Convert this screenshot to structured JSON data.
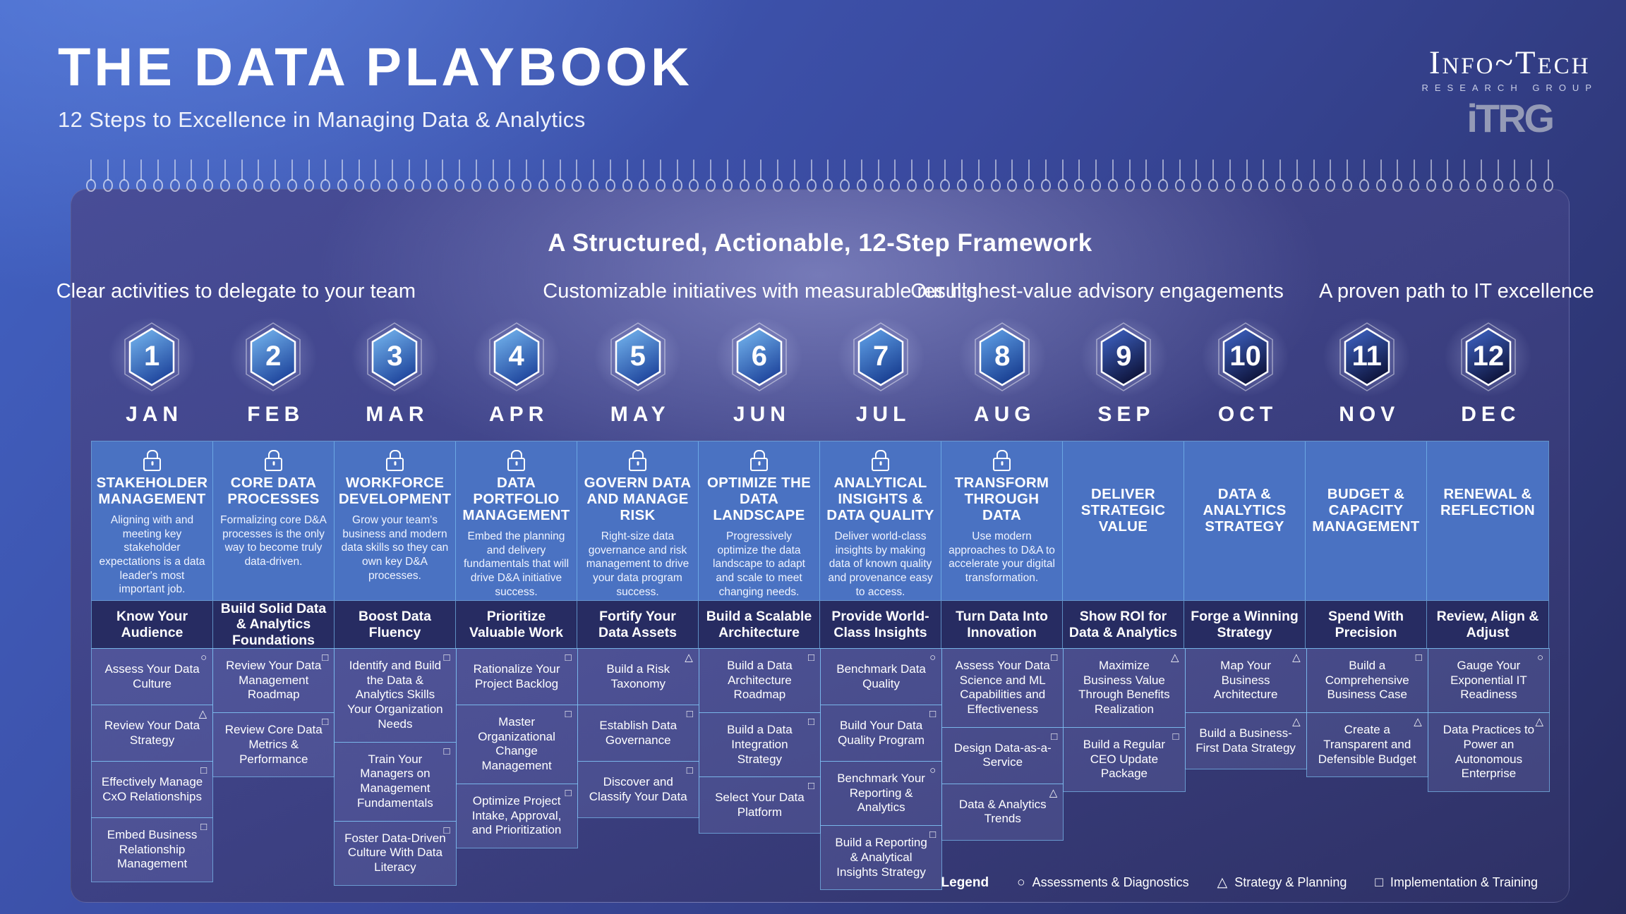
{
  "header": {
    "title": "THE DATA PLAYBOOK",
    "subtitle": "12 Steps to Excellence in Managing Data & Analytics"
  },
  "logo": {
    "brand": "Info~Tech",
    "tagline": "RESEARCH GROUP",
    "mark": "iTRG"
  },
  "framework": {
    "heading": "A Structured, Actionable, 12-Step Framework",
    "group_headers": [
      "Clear activities to delegate to your team",
      "Customizable initiatives with measurable results",
      "Our highest-value advisory engagements",
      "A proven path to IT excellence"
    ]
  },
  "columns": [
    {
      "step": 1,
      "month": "JAN",
      "locked": true,
      "title": "STAKEHOLDER MANAGEMENT",
      "description": "Aligning with and meeting key stakeholder expectations is a data leader's most important job.",
      "subtitle": "Know Your Audience",
      "tasks": [
        {
          "label": "Assess Your Data Culture",
          "icon": "circle"
        },
        {
          "label": "Review Your Data Strategy",
          "icon": "triangle"
        },
        {
          "label": "Effectively Manage CxO Relationships",
          "icon": "square"
        },
        {
          "label": "Embed Business Relationship Management",
          "icon": "square"
        }
      ]
    },
    {
      "step": 2,
      "month": "FEB",
      "locked": true,
      "title": "CORE DATA PROCESSES",
      "description": "Formalizing core D&A processes is the only way to become truly data-driven.",
      "subtitle": "Build Solid Data & Analytics Foundations",
      "tasks": [
        {
          "label": "Review Your Data Management Roadmap",
          "icon": "square"
        },
        {
          "label": "Review Core Data Metrics & Performance",
          "icon": "square"
        }
      ]
    },
    {
      "step": 3,
      "month": "MAR",
      "locked": true,
      "title": "WORKFORCE DEVELOPMENT",
      "description": "Grow your team's business and modern data skills so they can own key D&A processes.",
      "subtitle": "Boost Data Fluency",
      "tasks": [
        {
          "label": "Identify and Build the Data & Analytics Skills Your Organization Needs",
          "icon": "square"
        },
        {
          "label": "Train Your Managers on Management Fundamentals",
          "icon": "square"
        },
        {
          "label": "Foster Data-Driven Culture With Data Literacy",
          "icon": "square"
        }
      ]
    },
    {
      "step": 4,
      "month": "APR",
      "locked": true,
      "title": "DATA PORTFOLIO MANAGEMENT",
      "description": "Embed the planning and delivery fundamentals that will drive D&A initiative success.",
      "subtitle": "Prioritize Valuable Work",
      "tasks": [
        {
          "label": "Rationalize Your Project Backlog",
          "icon": "square"
        },
        {
          "label": "Master Organizational Change Management",
          "icon": "square"
        },
        {
          "label": "Optimize Project Intake, Approval, and Prioritization",
          "icon": "square"
        }
      ]
    },
    {
      "step": 5,
      "month": "MAY",
      "locked": true,
      "title": "GOVERN DATA AND MANAGE RISK",
      "description": "Right-size data governance and risk management to drive your data program success.",
      "subtitle": "Fortify Your Data Assets",
      "tasks": [
        {
          "label": "Build a Risk Taxonomy",
          "icon": "triangle"
        },
        {
          "label": "Establish Data Governance",
          "icon": "square"
        },
        {
          "label": "Discover and Classify Your Data",
          "icon": "square"
        }
      ]
    },
    {
      "step": 6,
      "month": "JUN",
      "locked": true,
      "title": "OPTIMIZE THE DATA LANDSCAPE",
      "description": "Progressively optimize the data landscape to adapt and scale to meet changing needs.",
      "subtitle": "Build a Scalable Architecture",
      "tasks": [
        {
          "label": "Build a Data Architecture Roadmap",
          "icon": "square"
        },
        {
          "label": "Build a Data Integration Strategy",
          "icon": "square"
        },
        {
          "label": "Select Your Data Platform",
          "icon": "square"
        }
      ]
    },
    {
      "step": 7,
      "month": "JUL",
      "locked": true,
      "title": "ANALYTICAL INSIGHTS & DATA QUALITY",
      "description": "Deliver world-class insights by making data of known quality and provenance easy to access.",
      "subtitle": "Provide World-Class Insights",
      "tasks": [
        {
          "label": "Benchmark Data Quality",
          "icon": "circle"
        },
        {
          "label": "Build Your Data Quality Program",
          "icon": "square"
        },
        {
          "label": "Benchmark Your Reporting & Analytics",
          "icon": "circle"
        },
        {
          "label": "Build a Reporting & Analytical Insights Strategy",
          "icon": "square"
        }
      ]
    },
    {
      "step": 8,
      "month": "AUG",
      "locked": true,
      "title": "TRANSFORM THROUGH DATA",
      "description": "Use modern approaches to D&A to accelerate your digital transformation.",
      "subtitle": "Turn Data Into Innovation",
      "tasks": [
        {
          "label": "Assess Your Data Science and ML Capabilities and Effectiveness",
          "icon": "square"
        },
        {
          "label": "Design Data-as-a-Service",
          "icon": "square"
        },
        {
          "label": "Data & Analytics Trends",
          "icon": "triangle"
        }
      ]
    },
    {
      "step": 9,
      "month": "SEP",
      "locked": false,
      "title": "DELIVER STRATEGIC VALUE",
      "description": "",
      "subtitle": "Show ROI for Data & Analytics",
      "tasks": [
        {
          "label": "Maximize Business Value Through Benefits Realization",
          "icon": "triangle"
        },
        {
          "label": "Build a Regular CEO Update Package",
          "icon": "square"
        }
      ]
    },
    {
      "step": 10,
      "month": "OCT",
      "locked": false,
      "title": "DATA & ANALYTICS STRATEGY",
      "description": "",
      "subtitle": "Forge a Winning Strategy",
      "tasks": [
        {
          "label": "Map Your Business Architecture",
          "icon": "triangle"
        },
        {
          "label": "Build a Business-First Data Strategy",
          "icon": "triangle"
        }
      ]
    },
    {
      "step": 11,
      "month": "NOV",
      "locked": false,
      "title": "BUDGET & CAPACITY MANAGEMENT",
      "description": "",
      "subtitle": "Spend With Precision",
      "tasks": [
        {
          "label": "Build a Comprehensive Business Case",
          "icon": "square"
        },
        {
          "label": "Create a Transparent and Defensible Budget",
          "icon": "triangle"
        }
      ]
    },
    {
      "step": 12,
      "month": "DEC",
      "locked": false,
      "title": "RENEWAL & REFLECTION",
      "description": "",
      "subtitle": "Review, Align & Adjust",
      "tasks": [
        {
          "label": "Gauge Your Exponential IT Readiness",
          "icon": "circle"
        },
        {
          "label": "Data Practices to Power an Autonomous Enterprise",
          "icon": "triangle"
        }
      ]
    }
  ],
  "legend": {
    "label": "Legend",
    "items": [
      {
        "icon": "circle",
        "label": "Assessments & Diagnostics"
      },
      {
        "icon": "triangle",
        "label": "Strategy & Planning"
      },
      {
        "icon": "square",
        "label": "Implementation & Training"
      }
    ]
  },
  "colors": {
    "background_top": "#4263c4",
    "background_bottom": "#272b5e",
    "panel": "#3d4184",
    "pillar_card": "#4a72c2",
    "subtitle_band": "#272c62",
    "grid_line": "#7dc3f0",
    "hexagon_light": "#73b4ee",
    "hexagon_dark": "#0d1238"
  }
}
